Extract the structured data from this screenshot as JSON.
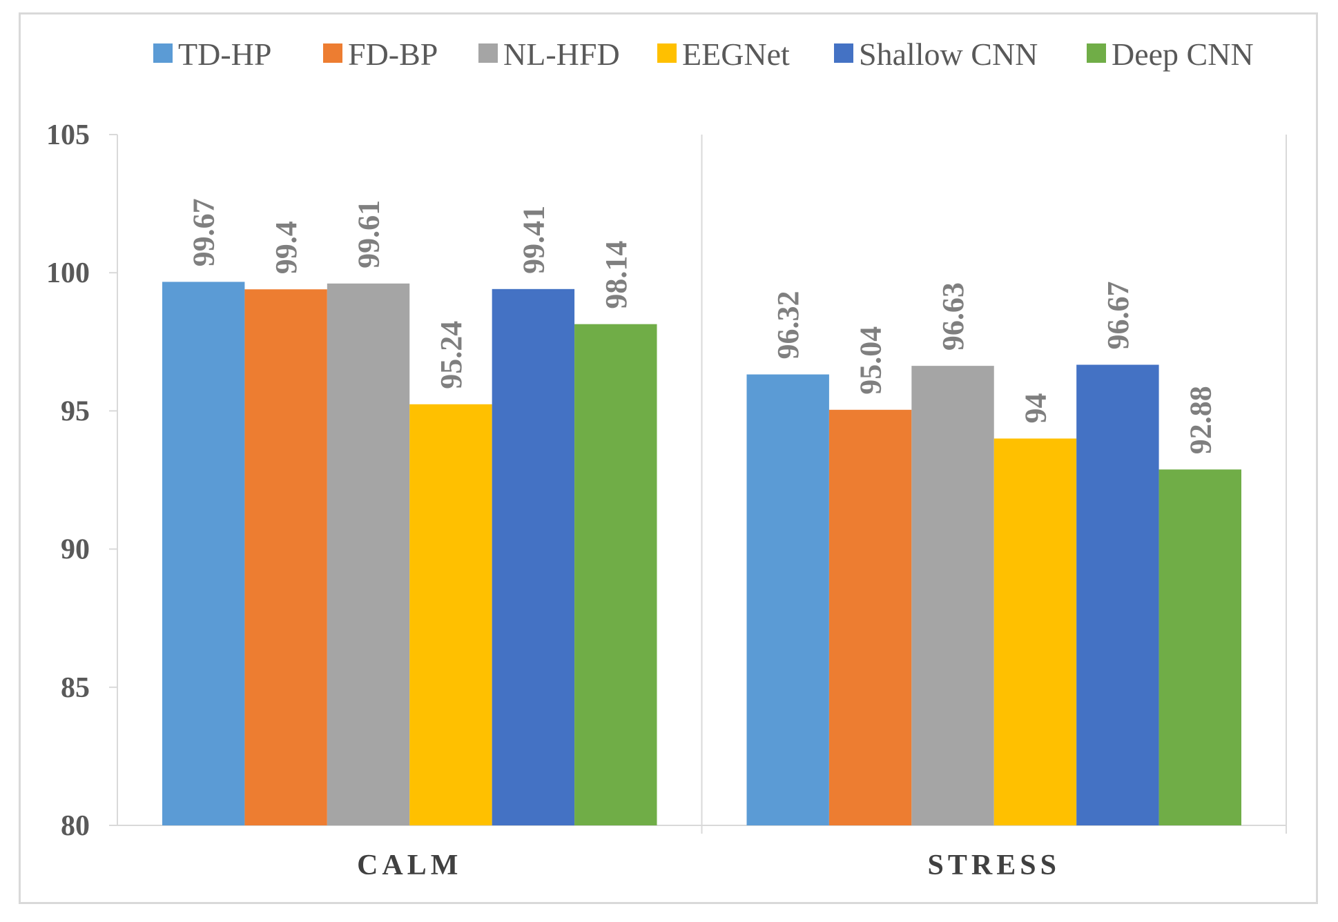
{
  "chart_data": {
    "type": "bar",
    "title": "",
    "xlabel": "",
    "ylabel": "",
    "categories": [
      "CALM",
      "STRESS"
    ],
    "ylim": [
      80,
      105
    ],
    "yticks": [
      80,
      85,
      90,
      95,
      100,
      105
    ],
    "grid": false,
    "legend_position": "top",
    "series": [
      {
        "name": "TD-HP",
        "color": "#5B9BD5",
        "values": [
          99.67,
          96.32
        ],
        "labels": [
          "99.67",
          "96.32"
        ]
      },
      {
        "name": "FD-BP",
        "color": "#ED7D31",
        "values": [
          99.4,
          95.04
        ],
        "labels": [
          "99.4",
          "95.04"
        ]
      },
      {
        "name": "NL-HFD",
        "color": "#A5A5A5",
        "values": [
          99.61,
          96.63
        ],
        "labels": [
          "99.61",
          "96.63"
        ]
      },
      {
        "name": "EEGNet",
        "color": "#FFC000",
        "values": [
          95.24,
          94
        ],
        "labels": [
          "95.24",
          "94"
        ]
      },
      {
        "name": "Shallow CNN",
        "color": "#4472C4",
        "values": [
          99.41,
          96.67
        ],
        "labels": [
          "99.41",
          "96.67"
        ]
      },
      {
        "name": "Deep CNN",
        "color": "#70AD47",
        "values": [
          98.14,
          92.88
        ],
        "labels": [
          "98.14",
          "92.88"
        ]
      }
    ]
  }
}
